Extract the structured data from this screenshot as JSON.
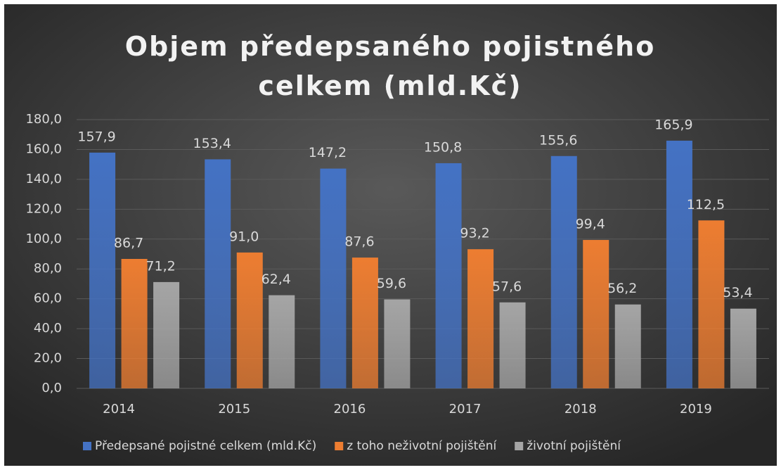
{
  "chart_data": {
    "type": "bar",
    "title": "Objem předepsaného pojistného celkem (mld.Kč)",
    "categories": [
      "2014",
      "2015",
      "2016",
      "2017",
      "2018",
      "2019"
    ],
    "series": [
      {
        "name": "Předepsané pojistné celkem (mld.Kč)",
        "color": "#4472c4",
        "values": [
          157.9,
          153.4,
          147.2,
          150.8,
          155.6,
          165.9
        ],
        "value_labels": [
          "157,9",
          "153,4",
          "147,2",
          "150,8",
          "155,6",
          "165,9"
        ]
      },
      {
        "name": "z toho neživotní pojištění",
        "color": "#ed7d31",
        "values": [
          86.7,
          91.0,
          87.6,
          93.2,
          99.4,
          112.5
        ],
        "value_labels": [
          "86,7",
          "91,0",
          "87,6",
          "93,2",
          "99,4",
          "112,5"
        ]
      },
      {
        "name": "životní pojištění",
        "color": "#a5a5a5",
        "values": [
          71.2,
          62.4,
          59.6,
          57.6,
          56.2,
          53.4
        ],
        "value_labels": [
          "71,2",
          "62,4",
          "59,6",
          "57,6",
          "56,2",
          "53,4"
        ]
      }
    ],
    "ylim": [
      0,
      180
    ],
    "yticks": [
      {
        "value": 0,
        "label": "0,0"
      },
      {
        "value": 20,
        "label": "20,0"
      },
      {
        "value": 40,
        "label": "40,0"
      },
      {
        "value": 60,
        "label": "60,0"
      },
      {
        "value": 80,
        "label": "80,0"
      },
      {
        "value": 100,
        "label": "100,0"
      },
      {
        "value": 120,
        "label": "120,0"
      },
      {
        "value": 140,
        "label": "140,0"
      },
      {
        "value": 160,
        "label": "160,0"
      },
      {
        "value": 180,
        "label": "180,0"
      }
    ],
    "grid": true,
    "legend": "bottom"
  }
}
